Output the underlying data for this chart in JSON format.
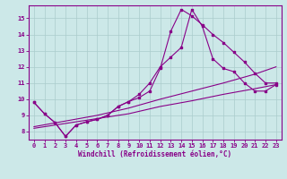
{
  "background_color": "#cce8e8",
  "grid_color": "#aacccc",
  "line_color": "#880088",
  "xlabel": "Windchill (Refroidissement éolien,°C)",
  "xlim": [
    -0.5,
    23.5
  ],
  "ylim": [
    7.5,
    15.8
  ],
  "xticks": [
    0,
    1,
    2,
    3,
    4,
    5,
    6,
    7,
    8,
    9,
    10,
    11,
    12,
    13,
    14,
    15,
    16,
    17,
    18,
    19,
    20,
    21,
    22,
    23
  ],
  "yticks": [
    8,
    9,
    10,
    11,
    12,
    13,
    14,
    15
  ],
  "line1_x": [
    0,
    1,
    2,
    3,
    4,
    5,
    6,
    7,
    8,
    9,
    10,
    11,
    12,
    13,
    14,
    15,
    16,
    17,
    18,
    19,
    20,
    21,
    22,
    23
  ],
  "line1_y": [
    9.8,
    9.1,
    8.55,
    7.7,
    8.4,
    8.6,
    8.75,
    9.0,
    9.55,
    9.85,
    10.1,
    10.5,
    11.9,
    14.2,
    15.55,
    15.15,
    14.6,
    14.0,
    13.5,
    12.9,
    12.3,
    11.6,
    11.0,
    11.0
  ],
  "line2_x": [
    0,
    1,
    2,
    3,
    4,
    5,
    6,
    7,
    8,
    9,
    10,
    11,
    12,
    13,
    14,
    15,
    16,
    17,
    18,
    19,
    20,
    21,
    22,
    23
  ],
  "line2_y": [
    9.8,
    9.1,
    8.55,
    7.7,
    8.4,
    8.6,
    8.75,
    9.0,
    9.55,
    9.85,
    10.3,
    11.0,
    12.0,
    12.6,
    13.2,
    15.55,
    14.5,
    12.5,
    11.9,
    11.7,
    11.0,
    10.5,
    10.5,
    10.9
  ],
  "line3_x": [
    0,
    3,
    6,
    9,
    12,
    15,
    18,
    21,
    23
  ],
  "line3_y": [
    8.2,
    8.5,
    8.8,
    9.1,
    9.55,
    9.9,
    10.3,
    10.65,
    10.9
  ],
  "line4_x": [
    0,
    3,
    6,
    9,
    12,
    15,
    18,
    21,
    23
  ],
  "line4_y": [
    8.3,
    8.65,
    9.0,
    9.45,
    10.0,
    10.5,
    11.0,
    11.55,
    12.0
  ],
  "markersize": 2.5,
  "linewidth": 0.8,
  "tick_fontsize": 5.0,
  "xlabel_fontsize": 5.5
}
